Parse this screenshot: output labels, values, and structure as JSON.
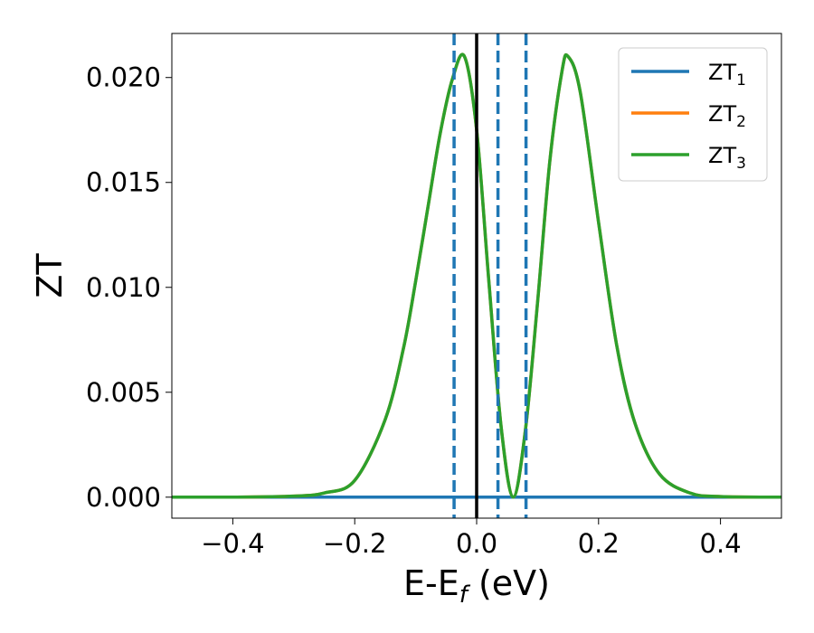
{
  "chart_data": {
    "type": "line",
    "title": "",
    "xlabel": "E-E_f (eV)",
    "xlabel_parts": {
      "main": "E-E",
      "sub": "f",
      "unit": " (eV)"
    },
    "ylabel": "ZT",
    "xlim": [
      -0.5,
      0.5
    ],
    "ylim": [
      -0.001,
      0.0221
    ],
    "xticks": [
      -0.4,
      -0.2,
      0.0,
      0.2,
      0.4
    ],
    "xtick_labels": [
      "−0.4",
      "−0.2",
      "0.0",
      "0.2",
      "0.4"
    ],
    "yticks": [
      0.0,
      0.005,
      0.01,
      0.015,
      0.02
    ],
    "ytick_labels": [
      "0.000",
      "0.005",
      "0.010",
      "0.015",
      "0.020"
    ],
    "grid": false,
    "legend_position": "top-right",
    "series": [
      {
        "name": "ZT1",
        "label_main": "ZT",
        "label_sub": "1",
        "color": "#1f77b4",
        "x": [
          -0.5,
          0.5
        ],
        "y": [
          0.0,
          0.0
        ]
      },
      {
        "name": "ZT2",
        "label_main": "ZT",
        "label_sub": "2",
        "color": "#ff7f0e",
        "x": [
          -0.5,
          -0.4,
          -0.3,
          -0.25,
          -0.2,
          -0.15,
          -0.12,
          -0.1,
          -0.08,
          -0.06,
          -0.04,
          -0.02,
          0.0,
          0.02,
          0.04,
          0.06,
          0.08,
          0.1,
          0.12,
          0.14,
          0.15,
          0.17,
          0.2,
          0.23,
          0.26,
          0.3,
          0.35,
          0.4,
          0.5
        ],
        "y": [
          0.0,
          0.0,
          5e-05,
          0.0002,
          0.0008,
          0.0037,
          0.0071,
          0.0103,
          0.0138,
          0.0173,
          0.0199,
          0.021,
          0.0175,
          0.0103,
          0.0034,
          0.0,
          0.0032,
          0.0093,
          0.016,
          0.0203,
          0.021,
          0.0193,
          0.0131,
          0.0072,
          0.0035,
          0.0011,
          0.0002,
          3e-05,
          0.0
        ]
      },
      {
        "name": "ZT3",
        "label_main": "ZT",
        "label_sub": "3",
        "color": "#2ca02c",
        "x": [
          -0.5,
          -0.4,
          -0.3,
          -0.25,
          -0.2,
          -0.15,
          -0.12,
          -0.1,
          -0.08,
          -0.06,
          -0.04,
          -0.02,
          0.0,
          0.02,
          0.04,
          0.06,
          0.08,
          0.1,
          0.12,
          0.14,
          0.15,
          0.17,
          0.2,
          0.23,
          0.26,
          0.3,
          0.35,
          0.4,
          0.5
        ],
        "y": [
          0.0,
          0.0,
          5e-05,
          0.0002,
          0.0008,
          0.0037,
          0.0071,
          0.0103,
          0.0138,
          0.0173,
          0.0199,
          0.021,
          0.0175,
          0.0103,
          0.0034,
          0.0,
          0.0032,
          0.0093,
          0.016,
          0.0203,
          0.021,
          0.0193,
          0.0131,
          0.0072,
          0.0035,
          0.0011,
          0.0002,
          3e-05,
          0.0
        ]
      }
    ],
    "vlines": [
      {
        "x": 0.0,
        "style": "solid",
        "color": "#000000"
      },
      {
        "x": -0.037,
        "style": "dashed",
        "color": "#1f77b4"
      },
      {
        "x": 0.035,
        "style": "dashed",
        "color": "#1f77b4"
      },
      {
        "x": 0.081,
        "style": "dashed",
        "color": "#1f77b4"
      }
    ]
  }
}
